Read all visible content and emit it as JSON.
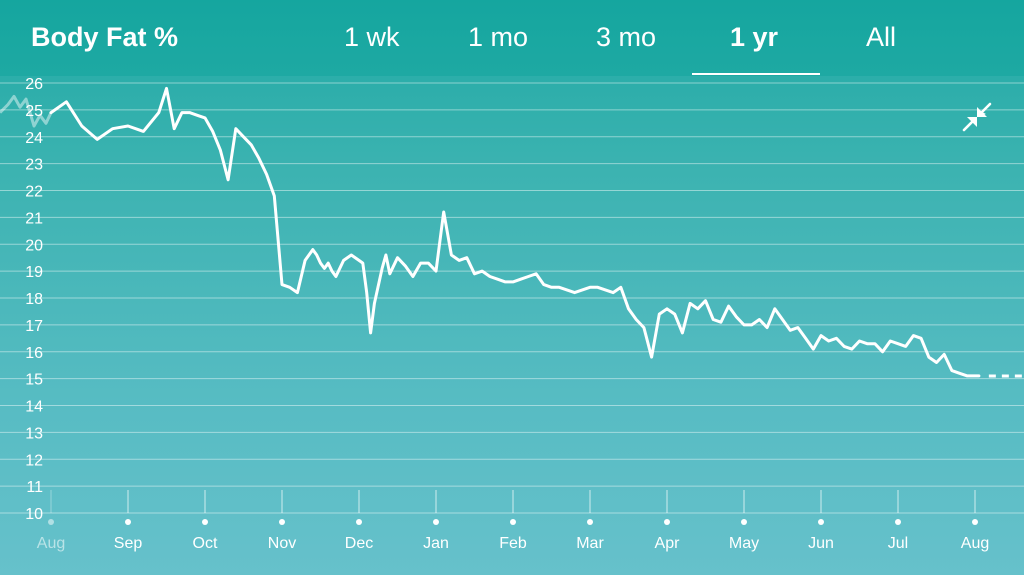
{
  "header": {
    "title": "Body Fat %",
    "tabs": [
      {
        "label": "1 wk",
        "active": false
      },
      {
        "label": "1 mo",
        "active": false
      },
      {
        "label": "3 mo",
        "active": false
      },
      {
        "label": "1 yr",
        "active": true
      },
      {
        "label": "All",
        "active": false
      }
    ]
  },
  "collapse_icon": "collapse-arrows-icon",
  "colors": {
    "line": "#ffffff",
    "header_bg": "#17a7a0",
    "background_top": "#1fa9a4",
    "background_bottom": "#66c1cb"
  },
  "chart_data": {
    "type": "line",
    "title": "",
    "xlabel": "",
    "ylabel": "",
    "ylim": [
      10,
      26
    ],
    "y_ticks": [
      10,
      11,
      12,
      13,
      14,
      15,
      16,
      17,
      18,
      19,
      20,
      21,
      22,
      23,
      24,
      25,
      26
    ],
    "grid": true,
    "x_tick_labels": [
      "Aug",
      "Sep",
      "Oct",
      "Nov",
      "Dec",
      "Jan",
      "Feb",
      "Mar",
      "Apr",
      "May",
      "Jun",
      "Jul",
      "Aug"
    ],
    "x_ticks_faded": [
      "Aug"
    ],
    "series": [
      {
        "x": [
          0.0,
          0.2,
          0.4,
          0.6,
          0.8,
          1.0,
          1.2,
          1.4,
          1.5,
          1.6,
          1.7,
          1.8,
          1.9,
          2.0,
          2.1,
          2.2,
          2.3,
          2.4,
          2.5,
          2.6,
          2.7,
          2.8,
          2.9,
          3.0,
          3.1,
          3.2,
          3.3,
          3.4,
          3.45,
          3.5,
          3.55,
          3.6,
          3.65,
          3.7,
          3.8,
          3.9,
          4.0,
          4.05,
          4.1,
          4.15,
          4.2,
          4.3,
          4.35,
          4.4,
          4.5,
          4.6,
          4.7,
          4.8,
          4.9,
          5.0,
          5.1,
          5.2,
          5.3,
          5.4,
          5.5,
          5.6,
          5.7,
          5.8,
          5.9,
          6.0,
          6.1,
          6.2,
          6.3,
          6.4,
          6.5,
          6.6,
          6.7,
          6.8,
          6.9,
          7.0,
          7.1,
          7.2,
          7.3,
          7.4,
          7.5,
          7.6,
          7.7,
          7.8,
          7.9,
          8.0,
          8.1,
          8.2,
          8.3,
          8.4,
          8.5,
          8.6,
          8.7,
          8.8,
          8.9,
          9.0,
          9.1,
          9.2,
          9.3,
          9.4,
          9.5,
          9.6,
          9.7,
          9.8,
          9.9,
          10.0,
          10.1,
          10.2,
          10.3,
          10.4,
          10.5,
          10.6,
          10.7,
          10.8,
          10.9,
          11.0,
          11.1,
          11.2,
          11.3,
          11.4,
          11.5,
          11.6,
          11.7,
          11.8,
          11.9,
          12.0,
          12.05
        ],
        "values": [
          24.9,
          25.3,
          24.4,
          23.9,
          24.3,
          24.4,
          24.2,
          24.9,
          25.8,
          24.3,
          24.9,
          24.9,
          24.8,
          24.7,
          24.2,
          23.5,
          22.4,
          24.3,
          24.0,
          23.7,
          23.2,
          22.6,
          21.8,
          18.5,
          18.4,
          18.2,
          19.4,
          19.8,
          19.6,
          19.3,
          19.1,
          19.3,
          19.0,
          18.8,
          19.4,
          19.6,
          19.4,
          19.3,
          18.2,
          16.7,
          17.8,
          19.1,
          19.6,
          18.9,
          19.5,
          19.2,
          18.8,
          19.3,
          19.3,
          19.0,
          21.2,
          19.6,
          19.4,
          19.5,
          18.9,
          19.0,
          18.8,
          18.7,
          18.6,
          18.6,
          18.7,
          18.8,
          18.9,
          18.5,
          18.4,
          18.4,
          18.3,
          18.2,
          18.3,
          18.4,
          18.4,
          18.3,
          18.2,
          18.4,
          17.6,
          17.2,
          16.9,
          15.8,
          17.4,
          17.6,
          17.4,
          16.7,
          17.8,
          17.6,
          17.9,
          17.2,
          17.1,
          17.7,
          17.3,
          17.0,
          17.0,
          17.2,
          16.9,
          17.6,
          17.2,
          16.8,
          16.9,
          16.5,
          16.1,
          16.6,
          16.4,
          16.5,
          16.2,
          16.1,
          16.4,
          16.3,
          16.3,
          16.0,
          16.4,
          16.3,
          16.2,
          16.6,
          16.5,
          15.8,
          15.6,
          15.9,
          15.3,
          15.2,
          15.1,
          15.1,
          15.1
        ]
      }
    ],
    "projection": {
      "style": "dashed",
      "value": 15.1
    }
  }
}
